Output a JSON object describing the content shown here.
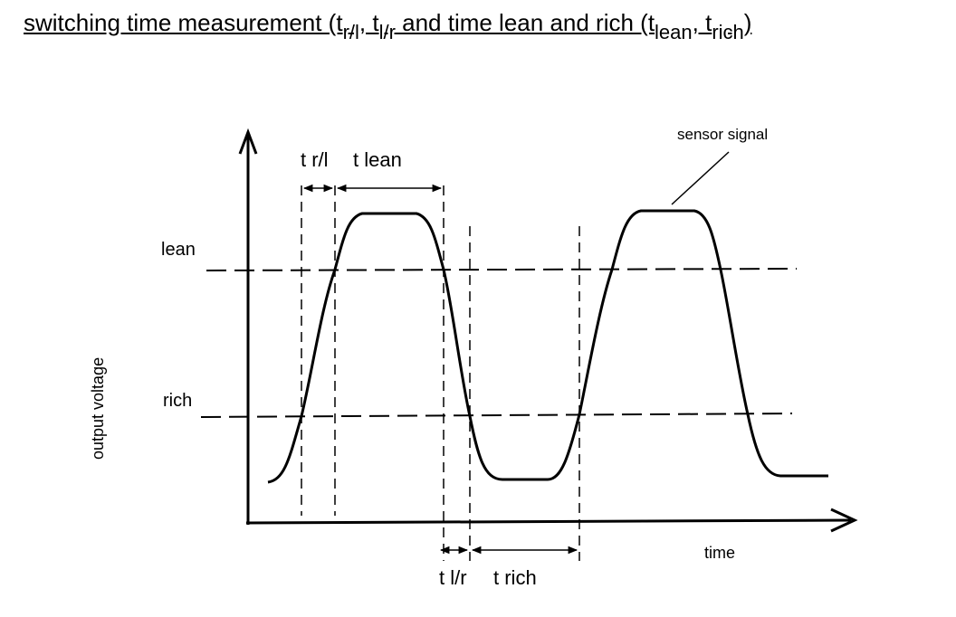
{
  "title": {
    "prefix": "switching time measurement (t",
    "sub1": "r/l",
    "sep1": ", t",
    "sub2": "l/r",
    "mid": " and time lean and rich (t",
    "sub3": "lean",
    "sep2": ", t",
    "sub4": "rich",
    "suffix": ")"
  },
  "labels": {
    "y_axis": "output voltage",
    "x_axis": "time",
    "lean_level": "lean",
    "rich_level": "rich",
    "signal": "sensor signal",
    "t_rl": "t r/l",
    "t_lean": "t lean",
    "t_lr": "t l/r",
    "t_rich": "t rich"
  }
}
